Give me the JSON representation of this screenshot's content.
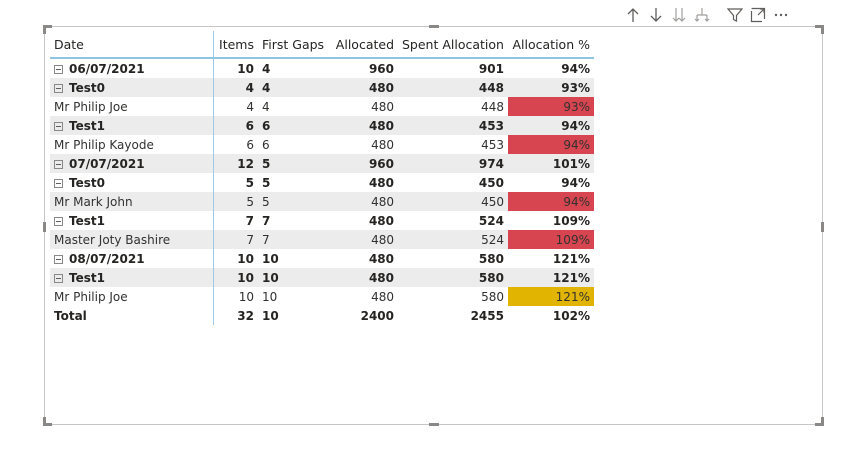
{
  "colors": {
    "red": "#d64550",
    "yellow": "#e0b400",
    "header_line": "#8fc5e0"
  },
  "toolbar": [
    "arrow-up-icon",
    "arrow-down-icon",
    "double-arrow-down-icon",
    "expand-hierarchy-icon",
    "filter-icon",
    "focus-mode-icon",
    "more-options-icon"
  ],
  "columns": {
    "date": "Date",
    "items": "Items",
    "first_gaps": "First Gaps",
    "allocated": "Allocated",
    "spent": "Spent Allocation",
    "pct": "Allocation %"
  },
  "rows": [
    {
      "label": "06/07/2021",
      "items": "10",
      "gaps": "4",
      "allocated": "960",
      "spent": "901",
      "pct": "94%"
    },
    {
      "label": "Test0",
      "items": "4",
      "gaps": "4",
      "allocated": "480",
      "spent": "448",
      "pct": "93%"
    },
    {
      "label": "Mr Philip Joe",
      "items": "4",
      "gaps": "4",
      "allocated": "480",
      "spent": "448",
      "pct": "93%"
    },
    {
      "label": "Test1",
      "items": "6",
      "gaps": "6",
      "allocated": "480",
      "spent": "453",
      "pct": "94%"
    },
    {
      "label": "Mr Philip Kayode",
      "items": "6",
      "gaps": "6",
      "allocated": "480",
      "spent": "453",
      "pct": "94%"
    },
    {
      "label": "07/07/2021",
      "items": "12",
      "gaps": "5",
      "allocated": "960",
      "spent": "974",
      "pct": "101%"
    },
    {
      "label": "Test0",
      "items": "5",
      "gaps": "5",
      "allocated": "480",
      "spent": "450",
      "pct": "94%"
    },
    {
      "label": "Mr Mark John",
      "items": "5",
      "gaps": "5",
      "allocated": "480",
      "spent": "450",
      "pct": "94%"
    },
    {
      "label": "Test1",
      "items": "7",
      "gaps": "7",
      "allocated": "480",
      "spent": "524",
      "pct": "109%"
    },
    {
      "label": "Master Joty Bashire",
      "items": "7",
      "gaps": "7",
      "allocated": "480",
      "spent": "524",
      "pct": "109%"
    },
    {
      "label": "08/07/2021",
      "items": "10",
      "gaps": "10",
      "allocated": "480",
      "spent": "580",
      "pct": "121%"
    },
    {
      "label": "Test1",
      "items": "10",
      "gaps": "10",
      "allocated": "480",
      "spent": "580",
      "pct": "121%"
    },
    {
      "label": "Mr Philip Joe",
      "items": "10",
      "gaps": "10",
      "allocated": "480",
      "spent": "580",
      "pct": "121%"
    }
  ],
  "total": {
    "label": "Total",
    "items": "32",
    "gaps": "10",
    "allocated": "2400",
    "spent": "2455",
    "pct": "102%"
  }
}
